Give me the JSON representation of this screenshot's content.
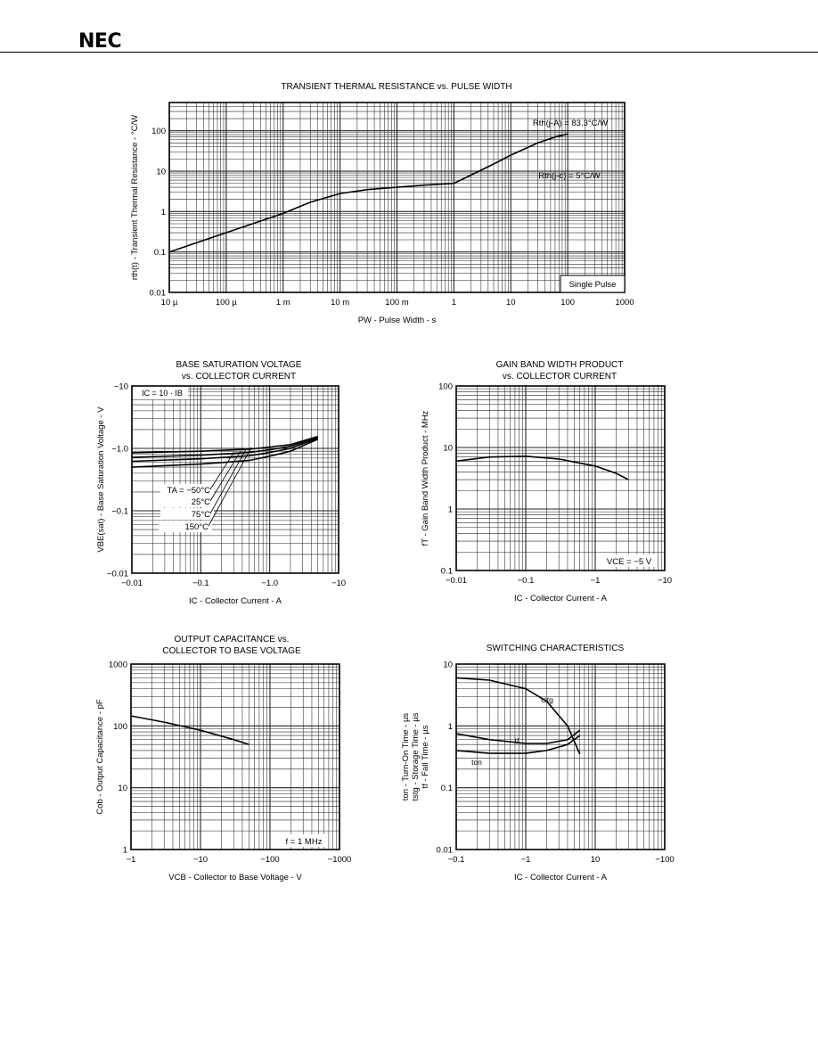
{
  "header": {
    "logo": "NEC"
  },
  "chart_data": [
    {
      "type": "line",
      "title": "TRANSIENT THERMAL RESISTANCE vs. PULSE WIDTH",
      "xlabel": "PW - Pulse Width - s",
      "ylabel": "rth(t) - Transient Thermal Resistance - °C/W",
      "xscale": "log",
      "yscale": "log",
      "xlim": [
        1e-05,
        1000
      ],
      "ylim": [
        0.01,
        500
      ],
      "x_ticks": [
        1e-05,
        0.0001,
        0.001,
        0.01,
        0.1,
        1,
        10,
        100,
        1000
      ],
      "x_tick_labels": [
        "10 µ",
        "100 µ",
        "1 m",
        "10 m",
        "100 m",
        "1",
        "10",
        "100",
        "1000"
      ],
      "y_ticks": [
        0.01,
        0.1,
        1,
        10,
        100
      ],
      "y_tick_labels": [
        "0.01",
        "0.1",
        "1",
        "10",
        "100"
      ],
      "annotations": [
        "Rth(j-A) = 83.3°C/W",
        "Rth(j-c) = 5°C/W",
        "Single Pulse"
      ],
      "grid": true,
      "series": [
        {
          "x": [
            1e-05,
            0.0001,
            0.001,
            0.003,
            0.01,
            0.03,
            0.1,
            0.3,
            1,
            2,
            5,
            10,
            30,
            60,
            100
          ],
          "y": [
            0.1,
            0.3,
            0.9,
            1.7,
            2.8,
            3.5,
            4.0,
            4.5,
            5.0,
            8,
            15,
            25,
            50,
            70,
            83.3
          ]
        }
      ]
    },
    {
      "type": "line",
      "title": "BASE SATURATION VOLTAGE\nvs. COLLECTOR CURRENT",
      "xlabel": "IC - Collector Current - A",
      "ylabel": "VBE(sat) - Base Saturation Voltage - V",
      "xscale": "log",
      "yscale": "log",
      "xlim": [
        0.01,
        10
      ],
      "ylim": [
        0.01,
        10
      ],
      "x_tick_labels": [
        "−0.01",
        "−0.1",
        "−1.0",
        "−10"
      ],
      "y_tick_labels": [
        "−10",
        "−1.0",
        "−0.1",
        "−0.01"
      ],
      "annotations": [
        "IC = 10 · IB",
        "TA = −50°C",
        "25°C",
        "75°C",
        "150°C"
      ],
      "grid": true,
      "series": [
        {
          "name": "TA = −50°C",
          "x": [
            0.01,
            0.1,
            0.5,
            1,
            2,
            5
          ],
          "y": [
            0.85,
            0.9,
            0.97,
            1.05,
            1.15,
            1.55
          ]
        },
        {
          "name": "25°C",
          "x": [
            0.01,
            0.1,
            0.5,
            1,
            2,
            5
          ],
          "y": [
            0.72,
            0.78,
            0.86,
            0.95,
            1.08,
            1.5
          ]
        },
        {
          "name": "75°C",
          "x": [
            0.01,
            0.1,
            0.5,
            1,
            2,
            5
          ],
          "y": [
            0.62,
            0.68,
            0.76,
            0.86,
            1.0,
            1.45
          ]
        },
        {
          "name": "150°C",
          "x": [
            0.01,
            0.1,
            0.5,
            1,
            2,
            5
          ],
          "y": [
            0.5,
            0.56,
            0.64,
            0.75,
            0.9,
            1.4
          ]
        }
      ]
    },
    {
      "type": "line",
      "title": "GAIN BAND WIDTH PRODUCT\nvs. COLLECTOR CURRENT",
      "xlabel": "IC - Collector Current - A",
      "ylabel": "fT - Gain Band Width Product - MHz",
      "xscale": "log",
      "yscale": "log",
      "xlim": [
        0.01,
        10
      ],
      "ylim": [
        0.1,
        100
      ],
      "x_tick_labels": [
        "−0.01",
        "−0.1",
        "−1",
        "−10"
      ],
      "y_tick_labels": [
        "100",
        "10",
        "1",
        "0.1"
      ],
      "annotations": [
        "VCE = −5 V"
      ],
      "grid": true,
      "series": [
        {
          "x": [
            0.01,
            0.03,
            0.1,
            0.3,
            1,
            2,
            3
          ],
          "y": [
            6.0,
            7.0,
            7.2,
            6.5,
            5.0,
            3.8,
            3.0
          ]
        }
      ]
    },
    {
      "type": "line",
      "title": "OUTPUT CAPACITANCE vs.\nCOLLECTOR TO BASE VOLTAGE",
      "xlabel": "VCB - Collector to Base Voltage - V",
      "ylabel": "Cob - Output Capacitance - pF",
      "xscale": "log",
      "yscale": "log",
      "xlim": [
        1,
        1000
      ],
      "ylim": [
        1,
        1000
      ],
      "x_tick_labels": [
        "−1",
        "−10",
        "−100",
        "−1000"
      ],
      "y_tick_labels": [
        "1000",
        "100",
        "10",
        "1"
      ],
      "annotations": [
        "f = 1 MHz"
      ],
      "grid": true,
      "series": [
        {
          "x": [
            1,
            3,
            10,
            30,
            50
          ],
          "y": [
            145,
            115,
            85,
            60,
            50
          ]
        }
      ]
    },
    {
      "type": "line",
      "title": "SWITCHING CHARACTERISTICS",
      "xlabel": "IC - Collector Current - A",
      "ylabel": "ton - Turn-On Time - µs\ntstg - Storage Time - µs\ntf - Fall Time - µs",
      "xscale": "log",
      "yscale": "log",
      "xlim": [
        0.1,
        100
      ],
      "ylim": [
        0.01,
        10
      ],
      "x_tick_labels": [
        "−0.1",
        "−1",
        "10",
        "−100"
      ],
      "y_tick_labels": [
        "10",
        "1",
        "0.1",
        "0.01"
      ],
      "grid": true,
      "series": [
        {
          "name": "tstg",
          "x": [
            0.1,
            0.3,
            1,
            2,
            4,
            6
          ],
          "y": [
            6.0,
            5.5,
            4.0,
            2.5,
            1.0,
            0.35
          ]
        },
        {
          "name": "tf",
          "x": [
            0.1,
            0.3,
            1,
            2,
            4,
            6
          ],
          "y": [
            0.75,
            0.6,
            0.52,
            0.52,
            0.6,
            0.85
          ]
        },
        {
          "name": "ton",
          "x": [
            0.1,
            0.3,
            1,
            2,
            4,
            6
          ],
          "y": [
            0.4,
            0.36,
            0.36,
            0.4,
            0.5,
            0.7
          ]
        }
      ]
    }
  ]
}
